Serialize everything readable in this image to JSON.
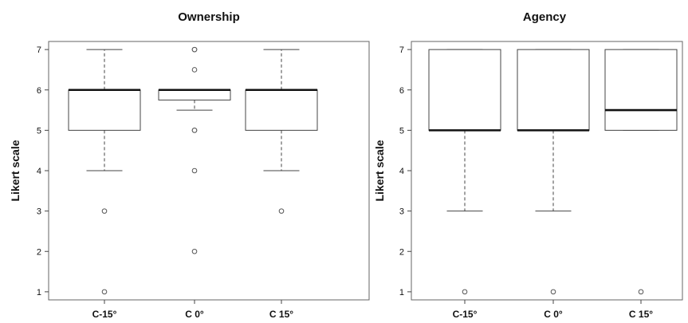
{
  "chart_data": [
    {
      "type": "boxplot",
      "title": "Ownership",
      "xlabel": "",
      "ylabel": "Likert scale",
      "ylim": [
        0.8,
        7.2
      ],
      "yticks": [
        1,
        2,
        3,
        4,
        5,
        6,
        7
      ],
      "categories": [
        "C-15°",
        "C 0°",
        "C 15°"
      ],
      "boxes": [
        {
          "whisker_low": 4,
          "q1": 5,
          "median": 6,
          "q3": 6,
          "whisker_high": 7,
          "outliers": [
            3,
            1
          ]
        },
        {
          "whisker_low": 5.5,
          "q1": 5.75,
          "median": 6,
          "q3": 6,
          "whisker_high": 6,
          "outliers": [
            7,
            7,
            6.5,
            5,
            5,
            4,
            2
          ]
        },
        {
          "whisker_low": 4,
          "q1": 5,
          "median": 6,
          "q3": 6,
          "whisker_high": 7,
          "outliers": [
            3
          ]
        }
      ],
      "grid": false,
      "legend": "none"
    },
    {
      "type": "boxplot",
      "title": "Agency",
      "xlabel": "",
      "ylabel": "Likert scale",
      "ylim": [
        0.8,
        7.2
      ],
      "yticks": [
        1,
        2,
        3,
        4,
        5,
        6,
        7
      ],
      "categories": [
        "C-15°",
        "C 0°",
        "C 15°"
      ],
      "boxes": [
        {
          "whisker_low": 3,
          "q1": 5,
          "median": 5,
          "q3": 7,
          "whisker_high": 7,
          "outliers": [
            1
          ]
        },
        {
          "whisker_low": 3,
          "q1": 5,
          "median": 5,
          "q3": 7,
          "whisker_high": 7,
          "outliers": [
            1
          ]
        },
        {
          "whisker_low": 5,
          "q1": 5,
          "median": 5.5,
          "q3": 7,
          "whisker_high": 7,
          "outliers": [
            1
          ]
        }
      ],
      "grid": false,
      "legend": "none"
    }
  ]
}
